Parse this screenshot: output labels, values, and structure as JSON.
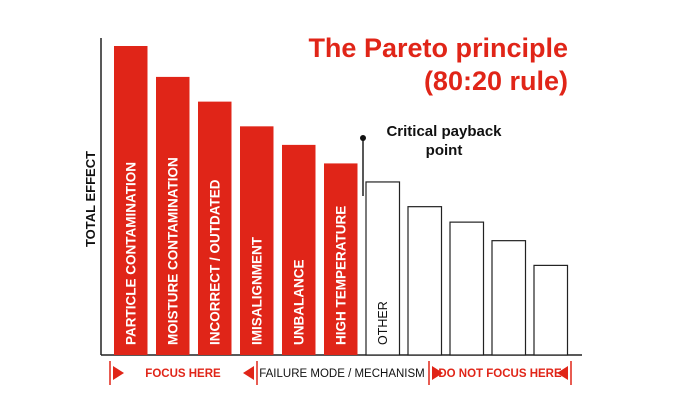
{
  "title": {
    "line1": "The Pareto principle",
    "line2": "(80:20 rule)"
  },
  "annotation": {
    "line1": "Critical payback",
    "line2": "point"
  },
  "colors": {
    "focus": "#e02518",
    "other": "#ffffff",
    "outline": "#222222",
    "text_dark": "#111111"
  },
  "chart_data": {
    "type": "bar",
    "ylabel": "TOTAL EFFECT",
    "xlabel": "FAILURE MODE / MECHANISM",
    "categories": [
      "PARTICLE CONTAMINATION",
      "MOISTURE CONTAMINATION",
      "INCORRECT / OUTDATED",
      "IMISALIGNMENT",
      "UNBALANCE",
      "HIGH TEMPERATURE",
      "OTHER",
      "",
      "",
      "",
      ""
    ],
    "values": [
      100,
      90,
      82,
      74,
      68,
      62,
      56,
      48,
      43,
      37,
      29
    ],
    "focus_count": 6,
    "legend_left": "FOCUS HERE",
    "legend_right": "DO NOT FOCUS HERE"
  }
}
